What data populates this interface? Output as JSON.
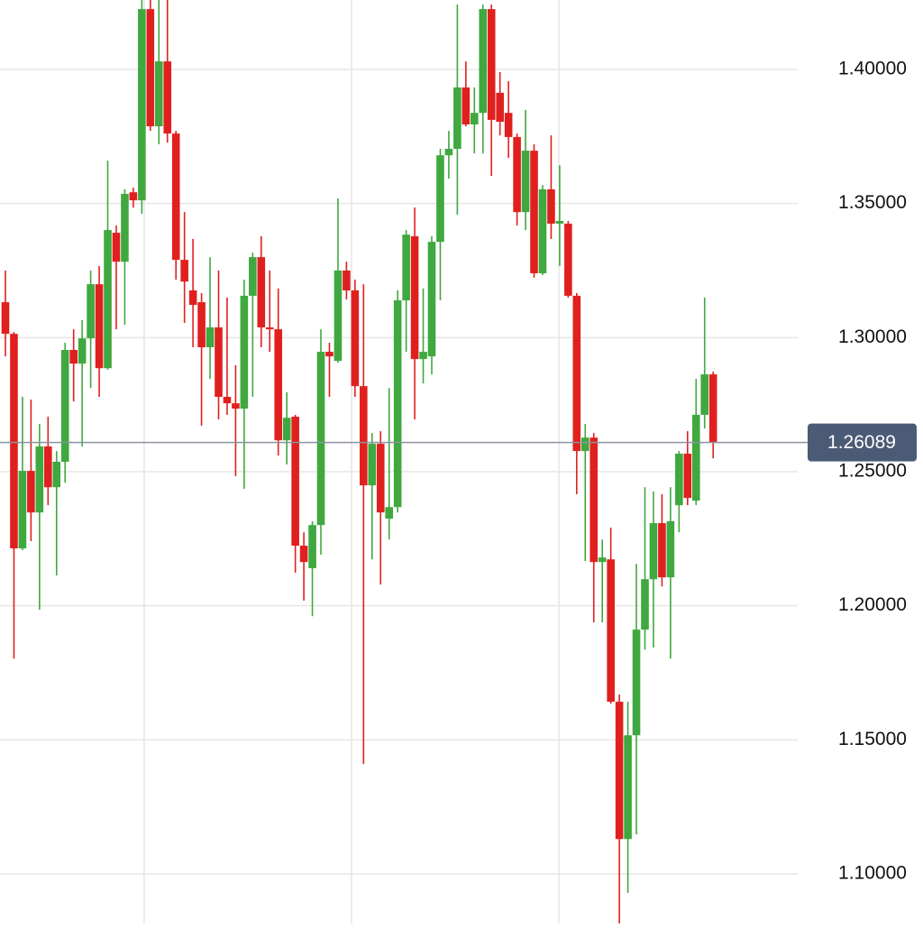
{
  "chart_data": {
    "type": "candlestick",
    "up_color": "#3fa83f",
    "down_color": "#e0201f",
    "grid": true,
    "ylim": [
      1.0815,
      1.4259
    ],
    "yticks": [
      {
        "value": 1.4,
        "label": "1.40000"
      },
      {
        "value": 1.35,
        "label": "1.35000"
      },
      {
        "value": 1.3,
        "label": "1.30000"
      },
      {
        "value": 1.25,
        "label": "1.25000"
      },
      {
        "value": 1.2,
        "label": "1.20000"
      },
      {
        "value": 1.15,
        "label": "1.15000"
      },
      {
        "value": 1.1,
        "label": "1.10000"
      }
    ],
    "last_price": 1.26089,
    "open": [
      1.3132,
      1.3014,
      1.2214,
      1.2503,
      1.2348,
      1.2594,
      1.2442,
      1.2537,
      1.2954,
      1.2903,
      1.2997,
      1.3199,
      1.2886,
      1.3391,
      1.3283,
      1.3542,
      1.3512,
      1.4225,
      1.3788,
      1.403,
      1.3761,
      1.329,
      1.3176,
      1.3132,
      1.2964,
      1.3038,
      1.2779,
      1.2755,
      1.2735,
      1.3156,
      1.33,
      1.3038,
      1.3031,
      1.2617,
      1.2705,
      1.2224,
      1.214,
      1.2301,
      1.2947,
      1.2913,
      1.325,
      1.3176,
      1.2819,
      1.2449,
      1.2604,
      1.2325,
      1.2368,
      1.3139,
      1.3378,
      1.292,
      1.293,
      1.3357,
      1.368,
      1.3704,
      1.3933,
      1.3795,
      1.3838,
      1.4225,
      1.3913,
      1.3838,
      1.3748,
      1.3468,
      1.3697,
      1.324,
      1.3553,
      1.3425,
      1.3425,
      1.3156,
      1.2577,
      1.2627,
      1.2163,
      1.2173,
      1.1642,
      1.113,
      1.1517,
      1.1911,
      1.2099,
      1.2308,
      1.2106,
      1.2375,
      1.2567,
      1.2392,
      1.2712,
      1.2863
    ],
    "high": [
      1.325,
      1.3021,
      1.2779,
      1.2769,
      1.2678,
      1.2705,
      1.2577,
      1.2981,
      1.3031,
      1.3065,
      1.325,
      1.3267,
      1.366,
      1.3418,
      1.3553,
      1.3559,
      1.4259,
      1.4259,
      1.4259,
      1.4259,
      1.3771,
      1.3468,
      1.3368,
      1.3166,
      1.33,
      1.325,
      1.3149,
      1.2897,
      1.3216,
      1.3317,
      1.3378,
      1.325,
      1.3183,
      1.2796,
      1.2712,
      1.2274,
      1.2315,
      1.3031,
      1.2981,
      1.3519,
      1.3283,
      1.3216,
      1.3199,
      1.2644,
      1.2651,
      1.2812,
      1.3176,
      1.3401,
      1.3485,
      1.3183,
      1.3378,
      1.3704,
      1.3771,
      1.4242,
      1.403,
      1.3933,
      1.4242,
      1.4242,
      1.399,
      1.3956,
      1.3761,
      1.3849,
      1.3721,
      1.3569,
      1.3754,
      1.3643,
      1.3435,
      1.3166,
      1.2678,
      1.2644,
      1.2247,
      1.2291,
      1.1669,
      1.1642,
      1.2156,
      1.2442,
      1.2426,
      1.2416,
      1.2442,
      1.2577,
      1.2651,
      1.2846,
      1.3149,
      1.2873
    ],
    "low": [
      1.293,
      1.1803,
      1.2207,
      1.2241,
      1.1985,
      1.2375,
      1.2113,
      1.2459,
      1.2762,
      1.2594,
      1.2812,
      1.2779,
      1.288,
      1.3031,
      1.3048,
      1.3485,
      1.3462,
      1.3771,
      1.3721,
      1.3727,
      1.3216,
      1.3055,
      1.2964,
      1.2671,
      1.2846,
      1.2695,
      1.2712,
      1.2483,
      1.2436,
      1.2779,
      1.2964,
      1.2947,
      1.256,
      1.2527,
      1.2123,
      1.2019,
      1.1961,
      1.219,
      1.2779,
      1.2907,
      1.3142,
      1.2779,
      1.141,
      1.2173,
      1.2079,
      1.2247,
      1.2348,
      1.2947,
      1.2695,
      1.2829,
      1.2863,
      1.3139,
      1.3593,
      1.3458,
      1.3788,
      1.3687,
      1.3687,
      1.3603,
      1.3754,
      1.367,
      1.3418,
      1.3401,
      1.3223,
      1.3233,
      1.3368,
      1.3267,
      1.3149,
      1.2416,
      1.2167,
      1.1938,
      1.1938,
      1.1635,
      1.0814,
      1.0929,
      1.1147,
      1.1837,
      1.1844,
      1.2072,
      1.1803,
      1.2274,
      1.2375,
      1.2375,
      1.2661,
      1.255
    ],
    "close": [
      1.3014,
      1.2214,
      1.2503,
      1.2348,
      1.2594,
      1.2442,
      1.2537,
      1.2954,
      1.2903,
      1.2997,
      1.3199,
      1.2886,
      1.3401,
      1.3283,
      1.3536,
      1.3512,
      1.4225,
      1.3788,
      1.403,
      1.3761,
      1.329,
      1.3209,
      1.3122,
      1.2964,
      1.3038,
      1.2779,
      1.2755,
      1.2735,
      1.3156,
      1.33,
      1.3038,
      1.3031,
      1.2617,
      1.2701,
      1.2224,
      1.2163,
      1.2301,
      1.2947,
      1.293,
      1.325,
      1.3176,
      1.2819,
      1.2449,
      1.2604,
      1.2348,
      1.2368,
      1.3139,
      1.3384,
      1.292,
      1.2947,
      1.3357,
      1.368,
      1.3704,
      1.3933,
      1.3795,
      1.3838,
      1.4225,
      1.3812,
      1.3805,
      1.3748,
      1.3468,
      1.3697,
      1.324,
      1.3553,
      1.3425,
      1.3435,
      1.3156,
      1.2577,
      1.2627,
      1.2163,
      1.218,
      1.1642,
      1.113,
      1.1517,
      1.1911,
      1.2099,
      1.2308,
      1.2106,
      1.2315,
      1.2567,
      1.2402,
      1.2712,
      1.2863,
      1.26089
    ]
  }
}
